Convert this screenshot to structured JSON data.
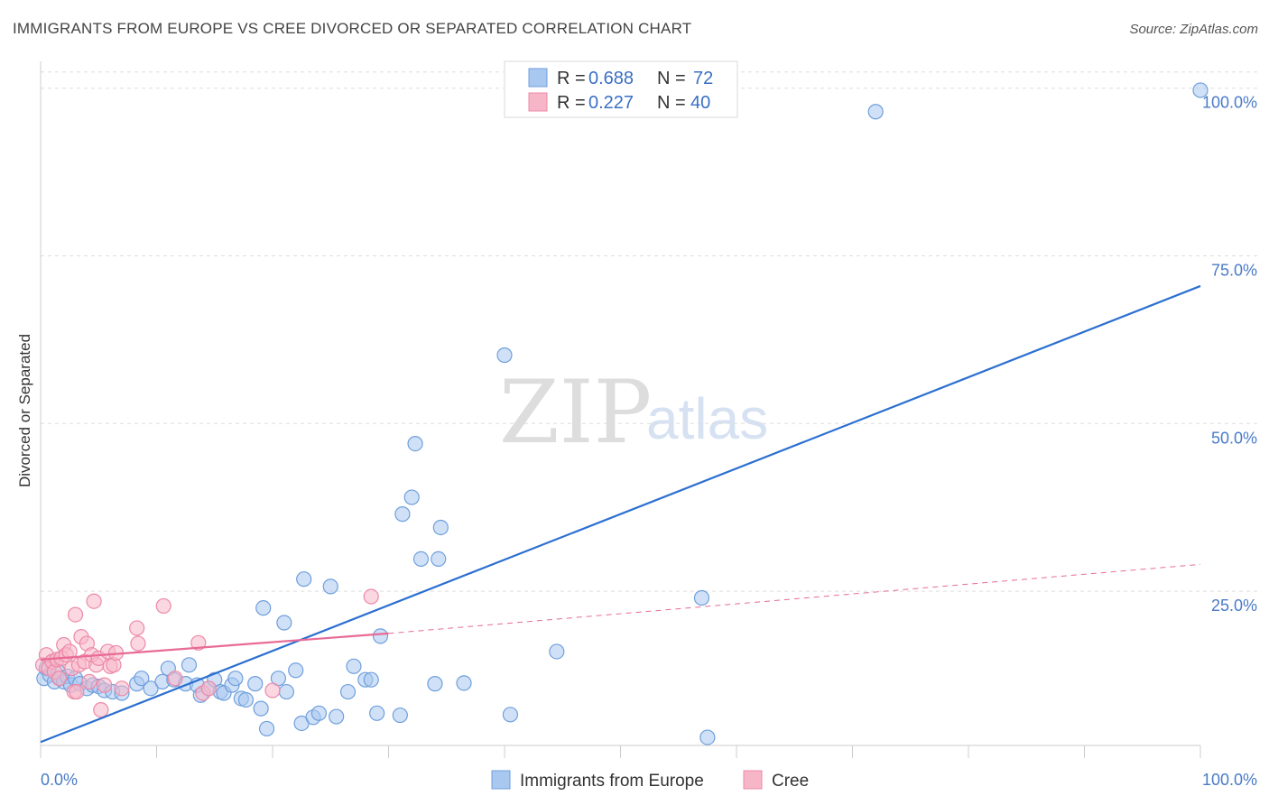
{
  "header": {
    "title": "IMMIGRANTS FROM EUROPE VS CREE DIVORCED OR SEPARATED CORRELATION CHART",
    "source": "Source: ZipAtlas.com"
  },
  "watermark": {
    "part1": "ZIP",
    "part2": "atlas"
  },
  "legend": {
    "rows": [
      {
        "r_label": "R = ",
        "r_value": "0.688",
        "n_label": "N = ",
        "n_value": "72",
        "color": "#a9c8f0"
      },
      {
        "r_label": "R = ",
        "r_value": "0.227",
        "n_label": "N = ",
        "n_value": "40",
        "color": "#f7b6c8"
      }
    ]
  },
  "bottom_legend": [
    {
      "label": "Immigrants from Europe",
      "color": "#a9c8f0"
    },
    {
      "label": "Cree",
      "color": "#f7b6c8"
    }
  ],
  "colors": {
    "europe_fill": "#a9c8f0",
    "europe_stroke": "#6f9fdc",
    "europe_line": "#2b6fd0",
    "cree_fill": "#f7b6c8",
    "cree_stroke": "#ec8aa8",
    "cree_line": "#e86a96",
    "grid": "#dddddd",
    "tick_text": "#4a7bc8"
  },
  "chart_data": {
    "type": "scatter",
    "title": "IMMIGRANTS FROM EUROPE VS CREE DIVORCED OR SEPARATED CORRELATION CHART",
    "xlabel": "",
    "ylabel": "Divorced or Separated",
    "xlim": [
      0,
      100
    ],
    "ylim": [
      2,
      104
    ],
    "x_tick_labels": [
      "0.0%",
      "100.0%"
    ],
    "y_ticks": [
      25,
      50,
      75,
      100
    ],
    "y_tick_labels": [
      "25.0%",
      "50.0%",
      "75.0%",
      "100.0%"
    ],
    "series": [
      {
        "name": "Immigrants from Europe",
        "R": 0.688,
        "N": 72,
        "trend": {
          "x": [
            0,
            100
          ],
          "y": [
            2.5,
            70.5
          ]
        },
        "points": [
          [
            0.3,
            12.0
          ],
          [
            0.5,
            13.5
          ],
          [
            0.8,
            12.5
          ],
          [
            1.0,
            14.5
          ],
          [
            1.2,
            11.5
          ],
          [
            1.5,
            13.0
          ],
          [
            1.7,
            12.0
          ],
          [
            2.0,
            11.5
          ],
          [
            2.3,
            12.3
          ],
          [
            2.6,
            11.0
          ],
          [
            3.0,
            12.0
          ],
          [
            3.4,
            11.2
          ],
          [
            4.0,
            10.5
          ],
          [
            4.5,
            11.0
          ],
          [
            5.0,
            10.8
          ],
          [
            5.5,
            10.2
          ],
          [
            6.2,
            10.0
          ],
          [
            7.0,
            9.8
          ],
          [
            8.3,
            11.2
          ],
          [
            8.7,
            12.0
          ],
          [
            9.5,
            10.5
          ],
          [
            10.5,
            11.5
          ],
          [
            11.0,
            13.5
          ],
          [
            11.5,
            11.8
          ],
          [
            12.5,
            11.2
          ],
          [
            12.8,
            14.0
          ],
          [
            13.5,
            11.0
          ],
          [
            13.8,
            9.5
          ],
          [
            14.5,
            10.5
          ],
          [
            15.0,
            11.8
          ],
          [
            15.5,
            10.0
          ],
          [
            15.8,
            9.8
          ],
          [
            16.5,
            11.0
          ],
          [
            16.8,
            12.0
          ],
          [
            17.3,
            9.0
          ],
          [
            17.7,
            8.8
          ],
          [
            18.5,
            11.2
          ],
          [
            19.0,
            7.5
          ],
          [
            19.2,
            22.5
          ],
          [
            19.5,
            4.5
          ],
          [
            20.5,
            12.0
          ],
          [
            21.0,
            20.3
          ],
          [
            21.2,
            10.0
          ],
          [
            22.0,
            13.2
          ],
          [
            22.5,
            5.3
          ],
          [
            22.7,
            26.8
          ],
          [
            23.5,
            6.2
          ],
          [
            24.0,
            6.8
          ],
          [
            25.0,
            25.7
          ],
          [
            25.5,
            6.3
          ],
          [
            26.5,
            10.0
          ],
          [
            27.0,
            13.8
          ],
          [
            28.0,
            11.8
          ],
          [
            28.5,
            11.8
          ],
          [
            29.0,
            6.8
          ],
          [
            29.3,
            18.3
          ],
          [
            31.0,
            6.5
          ],
          [
            31.2,
            36.5
          ],
          [
            32.0,
            39.0
          ],
          [
            32.3,
            47.0
          ],
          [
            32.8,
            29.8
          ],
          [
            34.0,
            11.2
          ],
          [
            34.3,
            29.8
          ],
          [
            34.5,
            34.5
          ],
          [
            36.5,
            11.3
          ],
          [
            40.0,
            60.2
          ],
          [
            40.5,
            6.6
          ],
          [
            44.5,
            16.0
          ],
          [
            57.0,
            24.0
          ],
          [
            57.5,
            3.2
          ],
          [
            72.0,
            96.5
          ],
          [
            100,
            99.7
          ]
        ]
      },
      {
        "name": "Cree",
        "R": 0.227,
        "N": 40,
        "trend": {
          "x": [
            0,
            30
          ],
          "y": [
            14.8,
            18.7
          ]
        },
        "trend_extended": {
          "x": [
            30,
            100
          ],
          "y": [
            18.7,
            29.0
          ]
        },
        "points": [
          [
            0.2,
            14.0
          ],
          [
            0.5,
            15.5
          ],
          [
            0.7,
            13.5
          ],
          [
            1.0,
            14.5
          ],
          [
            1.2,
            13.0
          ],
          [
            1.4,
            14.8
          ],
          [
            1.6,
            12.0
          ],
          [
            1.8,
            15.0
          ],
          [
            2.0,
            17.0
          ],
          [
            2.2,
            15.5
          ],
          [
            2.5,
            16.0
          ],
          [
            2.7,
            13.5
          ],
          [
            2.9,
            10.0
          ],
          [
            3.0,
            21.5
          ],
          [
            3.1,
            10.0
          ],
          [
            3.3,
            14.0
          ],
          [
            3.5,
            18.2
          ],
          [
            3.8,
            14.5
          ],
          [
            4.0,
            17.2
          ],
          [
            4.2,
            11.5
          ],
          [
            4.4,
            15.5
          ],
          [
            4.6,
            23.5
          ],
          [
            4.8,
            14.0
          ],
          [
            5.0,
            15.0
          ],
          [
            5.2,
            7.3
          ],
          [
            5.5,
            11.0
          ],
          [
            5.8,
            16.0
          ],
          [
            6.0,
            13.8
          ],
          [
            6.3,
            14.0
          ],
          [
            6.5,
            15.8
          ],
          [
            7.0,
            10.5
          ],
          [
            8.3,
            19.5
          ],
          [
            8.4,
            17.2
          ],
          [
            10.6,
            22.8
          ],
          [
            11.6,
            12.0
          ],
          [
            13.6,
            17.3
          ],
          [
            14.0,
            9.8
          ],
          [
            14.5,
            10.5
          ],
          [
            20.0,
            10.2
          ],
          [
            28.5,
            24.2
          ]
        ]
      }
    ]
  }
}
